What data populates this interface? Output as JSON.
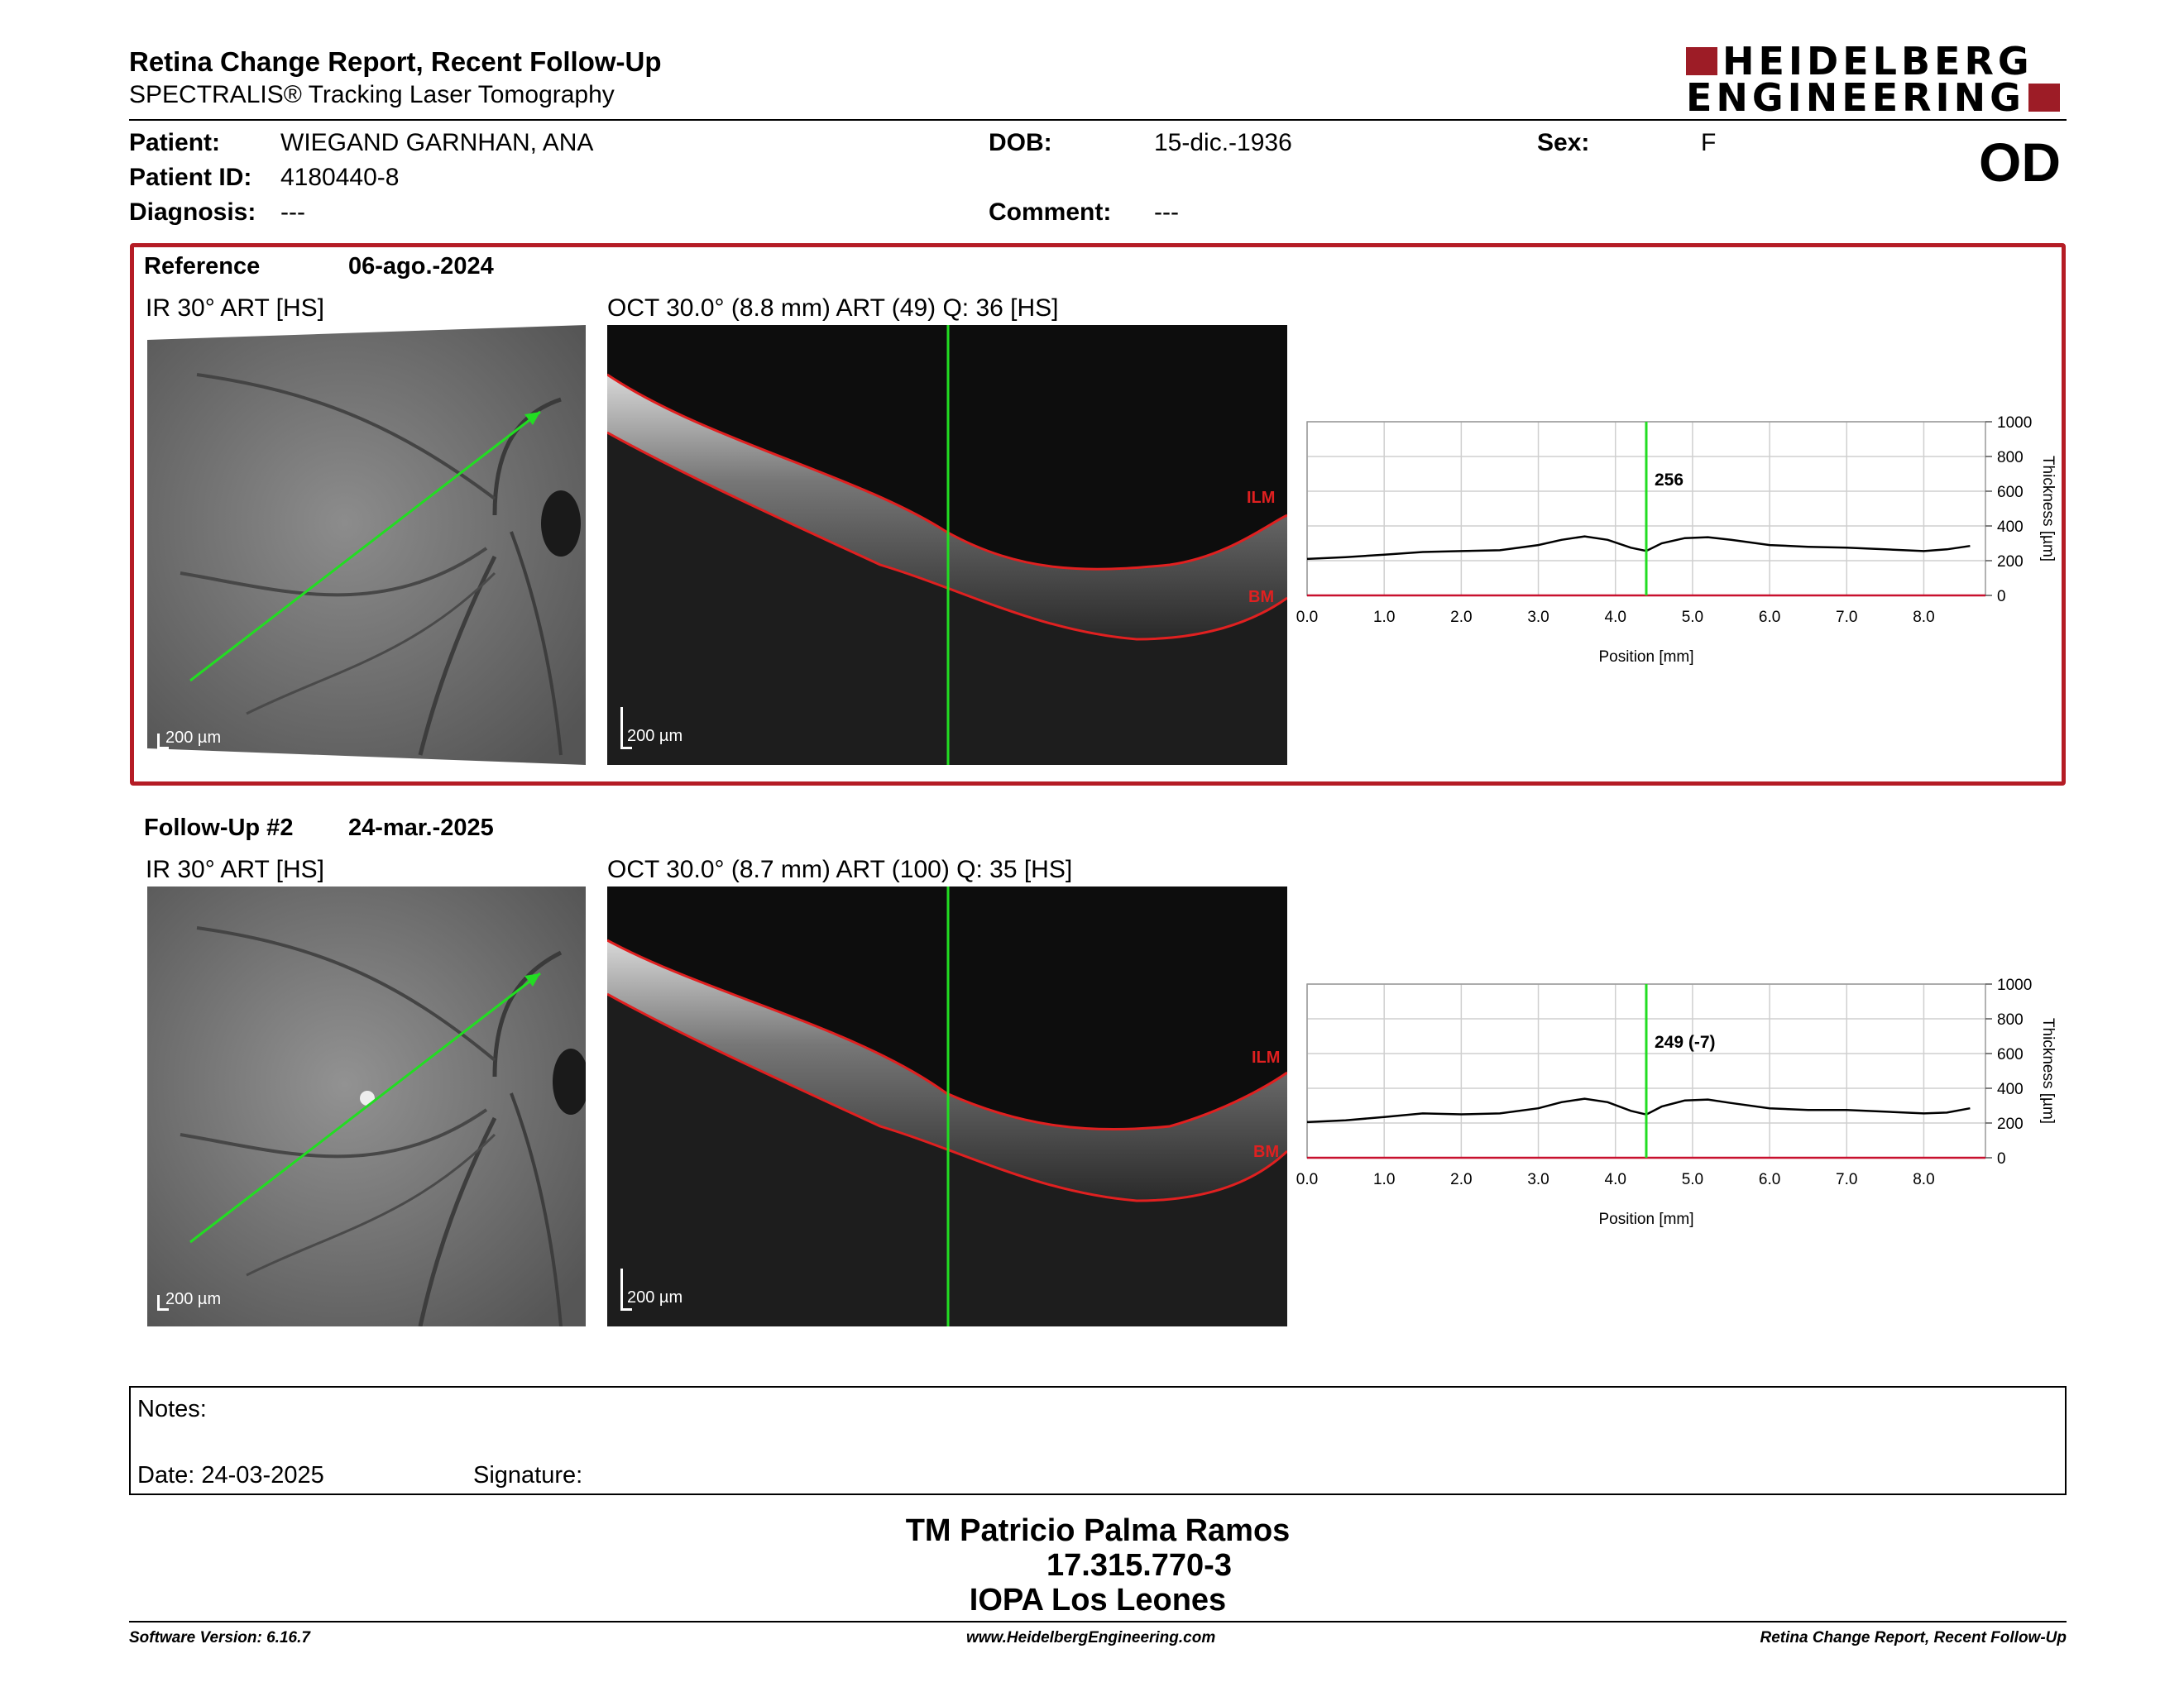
{
  "header": {
    "title": "Retina Change Report, Recent Follow-Up",
    "subtitle": "SPECTRALIS® Tracking Laser Tomography",
    "logo_line1": "HEIDELBERG",
    "logo_line2": "ENGINEERING",
    "eye": "OD"
  },
  "patient": {
    "patient_label": "Patient:",
    "patient_value": "WIEGAND GARNHAN, ANA",
    "dob_label": "DOB:",
    "dob_value": "15-dic.-1936",
    "sex_label": "Sex:",
    "sex_value": "F",
    "id_label": "Patient ID:",
    "id_value": "4180440-8",
    "diagnosis_label": "Diagnosis:",
    "diagnosis_value": "---",
    "comment_label": "Comment:",
    "comment_value": "---"
  },
  "reference": {
    "label": "Reference",
    "date": "06-ago.-2024",
    "ir_title": "IR 30° ART [HS]",
    "oct_title": "OCT 30.0° (8.8 mm) ART (49) Q: 36 [HS]",
    "ir_scale": "200 µm",
    "oct_scale": "200 µm",
    "ilm": "ILM",
    "bm": "BM"
  },
  "followup": {
    "label": "Follow-Up #2",
    "date": "24-mar.-2025",
    "ir_title": "IR 30° ART [HS]",
    "oct_title": "OCT 30.0° (8.7 mm) ART (100) Q: 35 [HS]",
    "ir_scale": "200 µm",
    "oct_scale": "200 µm",
    "ilm": "ILM",
    "bm": "BM"
  },
  "colors": {
    "accent_red": "#b51c25",
    "scan_green": "#22dd22",
    "segment_red": "#e02020"
  },
  "chart_data": [
    {
      "type": "line",
      "title": "",
      "xlabel": "Position [mm]",
      "ylabel": "Thickness [µm]",
      "xlim": [
        0,
        8.8
      ],
      "ylim": [
        0,
        1000
      ],
      "xticks": [
        "0.0",
        "1.0",
        "2.0",
        "3.0",
        "4.0",
        "5.0",
        "6.0",
        "7.0",
        "8.0"
      ],
      "yticks": [
        "0",
        "200",
        "400",
        "600",
        "800",
        "1000"
      ],
      "grid": true,
      "marker_x": 4.4,
      "marker_label": "256",
      "series": [
        {
          "x": [
            0,
            0.5,
            1,
            1.5,
            2,
            2.5,
            3,
            3.3,
            3.6,
            3.9,
            4.2,
            4.4,
            4.6,
            4.9,
            5.2,
            5.5,
            6,
            6.5,
            7,
            7.5,
            8,
            8.3,
            8.6
          ],
          "values": [
            210,
            220,
            235,
            250,
            255,
            260,
            290,
            320,
            340,
            320,
            275,
            256,
            300,
            330,
            335,
            320,
            290,
            280,
            275,
            265,
            255,
            265,
            285
          ]
        }
      ]
    },
    {
      "type": "line",
      "title": "",
      "xlabel": "Position [mm]",
      "ylabel": "Thickness [µm]",
      "xlim": [
        0,
        8.8
      ],
      "ylim": [
        0,
        1000
      ],
      "xticks": [
        "0.0",
        "1.0",
        "2.0",
        "3.0",
        "4.0",
        "5.0",
        "6.0",
        "7.0",
        "8.0"
      ],
      "yticks": [
        "0",
        "200",
        "400",
        "600",
        "800",
        "1000"
      ],
      "grid": true,
      "marker_x": 4.4,
      "marker_label": "249 (-7)",
      "series": [
        {
          "x": [
            0,
            0.5,
            1,
            1.5,
            2,
            2.5,
            3,
            3.3,
            3.6,
            3.9,
            4.2,
            4.4,
            4.6,
            4.9,
            5.2,
            5.5,
            6,
            6.5,
            7,
            7.5,
            8,
            8.3,
            8.6
          ],
          "values": [
            205,
            215,
            235,
            255,
            250,
            255,
            285,
            320,
            340,
            320,
            270,
            249,
            295,
            330,
            335,
            315,
            285,
            275,
            275,
            265,
            255,
            260,
            285
          ]
        }
      ]
    }
  ],
  "notes": {
    "notes_label": "Notes:",
    "date_label": "Date: 24-03-2025",
    "signature_label": "Signature:"
  },
  "signatory": {
    "name": "TM Patricio Palma Ramos",
    "id": "17.315.770-3",
    "org": "IOPA Los Leones"
  },
  "footer": {
    "version": "Software Version: 6.16.7",
    "website": "www.HeidelbergEngineering.com",
    "report": "Retina Change Report, Recent Follow-Up"
  }
}
